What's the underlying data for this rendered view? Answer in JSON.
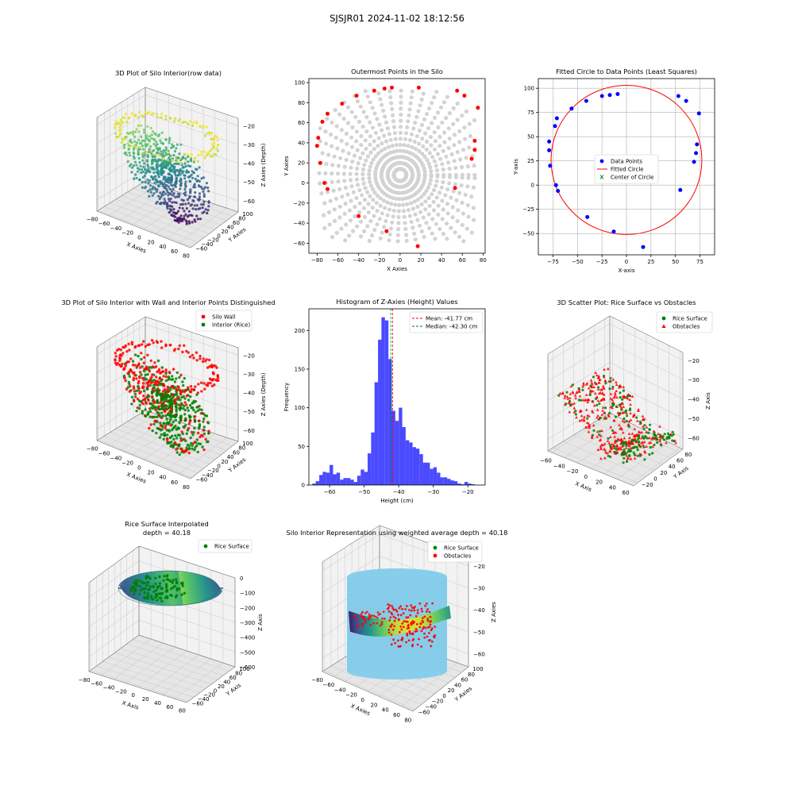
{
  "figure": {
    "suptitle": "SJSJR01 2024-11-02 18:12:56"
  },
  "colors": {
    "wall": "#ff0000",
    "rice": "#008000",
    "gray": "#d3d3d3",
    "blue": "#0000ff",
    "hist": "#4a4aff",
    "silo": "#87ceeb"
  },
  "chart_data": [
    {
      "type": "scatter3d",
      "title": "3D Plot of Silo Interior(row data)",
      "xlabel": "X Axies",
      "ylabel": "Y Axies",
      "zlabel": "Z Axies (Depth)",
      "xticks": [
        -80,
        -60,
        -40,
        -20,
        0,
        20,
        40,
        60,
        80
      ],
      "yticks": [
        -60,
        -40,
        -20,
        0,
        20,
        40,
        60,
        80,
        100
      ],
      "zticks": [
        -20,
        -30,
        -40,
        -50,
        -60
      ],
      "xlim": [
        -80,
        80
      ],
      "ylim": [
        -65,
        100
      ],
      "zlim": [
        -66,
        -16
      ],
      "colormap": "viridis"
    },
    {
      "type": "scatter",
      "title": "Outermost Points in the Silo",
      "xlabel": "X Axies",
      "ylabel": "Y Axies",
      "xlim": [
        -88,
        82
      ],
      "ylim": [
        -70,
        104
      ],
      "xticks": [
        -80,
        -60,
        -40,
        -20,
        0,
        20,
        40,
        60,
        80
      ],
      "yticks": [
        -60,
        -40,
        -20,
        0,
        20,
        40,
        60,
        80,
        100
      ],
      "outer_x": [
        -80,
        -79,
        -77,
        -75,
        -73,
        -70,
        -70,
        -56,
        -42,
        -40,
        -25,
        -15,
        -13,
        -8,
        17,
        18,
        53,
        55,
        62,
        69,
        72,
        72,
        75
      ],
      "outer_y": [
        37,
        45,
        20,
        61,
        0,
        69,
        -6,
        79,
        87,
        -33,
        92,
        94,
        -48,
        95,
        -63,
        95,
        -5,
        92,
        87,
        24,
        33,
        42,
        75
      ]
    },
    {
      "type": "scatter",
      "title": "Fitted Circle to Data Points (Least Squares)",
      "xlabel": "X-axis",
      "ylabel": "Y-axis",
      "xlim": [
        -90,
        90
      ],
      "ylim": [
        -72,
        110
      ],
      "xticks": [
        -75,
        -50,
        -25,
        0,
        25,
        50,
        75
      ],
      "yticks": [
        -50,
        -25,
        0,
        25,
        50,
        75,
        100
      ],
      "legend": [
        "Data Points",
        "Fitted Circle",
        "Center of Circle"
      ],
      "points_x": [
        -79,
        -79,
        -78,
        -73,
        -72,
        -71,
        -70,
        -56,
        -41,
        -40,
        -25,
        -17,
        -13,
        -9,
        17,
        53,
        55,
        61,
        69,
        71,
        72,
        74
      ],
      "points_y": [
        45,
        36,
        20,
        61,
        0,
        69,
        -6,
        79,
        87,
        -33,
        92,
        93,
        -48,
        94,
        -64,
        92,
        -5,
        87,
        24,
        33,
        42,
        74
      ],
      "circle": {
        "cx": 0,
        "cy": 26,
        "r": 77
      }
    },
    {
      "type": "scatter3d",
      "title": "3D Plot of Silo Interior with Wall and Interior Points Distinguished",
      "xlabel": "X Axies",
      "ylabel": "Y Axies",
      "zlabel": "Z Axies (Depth)",
      "xticks": [
        -80,
        -60,
        -40,
        -20,
        0,
        20,
        40,
        60,
        80
      ],
      "yticks": [
        -60,
        -40,
        -20,
        0,
        20,
        40,
        60,
        80,
        100
      ],
      "zticks": [
        -20,
        -30,
        -40,
        -50,
        -60
      ],
      "xlim": [
        -80,
        80
      ],
      "ylim": [
        -65,
        100
      ],
      "zlim": [
        -66,
        -16
      ],
      "legend": [
        "Silo Wall",
        "Interior (Rice)"
      ]
    },
    {
      "type": "bar",
      "title": "Histogram of Z-Axies (Height) Values",
      "xlabel": "Height (cm)",
      "ylabel": "Frequency",
      "xlim": [
        -66,
        -15
      ],
      "ylim": [
        0,
        228
      ],
      "xticks": [
        -60,
        -50,
        -40,
        -30,
        -20
      ],
      "yticks": [
        0,
        50,
        100,
        150,
        200
      ],
      "bin_start": -65,
      "bin_width": 1,
      "values": [
        2,
        5,
        13,
        17,
        16,
        26,
        14,
        16,
        7,
        9,
        9,
        7,
        4,
        12,
        20,
        17,
        41,
        68,
        133,
        188,
        217,
        213,
        163,
        96,
        83,
        100,
        75,
        58,
        55,
        49,
        47,
        40,
        29,
        29,
        21,
        23,
        16,
        10,
        10,
        8,
        6,
        5,
        2,
        1,
        4,
        2,
        1,
        0,
        0,
        0
      ],
      "mean": -41.77,
      "median": -42.3,
      "legend": [
        "Mean: -41.77 cm",
        "Median: -42.30 cm"
      ]
    },
    {
      "type": "scatter3d",
      "title": "3D Scatter Plot: Rice Surface vs Obstacles",
      "xlabel": "X Axis",
      "ylabel": "Y Axis",
      "zlabel": "Z Axis",
      "xticks": [
        -60,
        -40,
        -20,
        0,
        20,
        40,
        60
      ],
      "yticks": [
        -20,
        0,
        20,
        40,
        60,
        80
      ],
      "zticks": [
        -20,
        -30,
        -40,
        -50,
        -60
      ],
      "xlim": [
        -65,
        65
      ],
      "ylim": [
        -30,
        90
      ],
      "zlim": [
        -66,
        -16
      ],
      "legend": [
        "Rice Surface",
        "Obstacles"
      ]
    },
    {
      "type": "surface3d",
      "title": "Rice Surface Interpolated",
      "subtitle": "depth = 40.18",
      "xlabel": "X Axis",
      "ylabel": "Y Axis",
      "zlabel": "Z Axis",
      "xticks": [
        -80,
        -60,
        -40,
        -20,
        0,
        20,
        40,
        60,
        80
      ],
      "yticks": [
        -60,
        -40,
        -20,
        0,
        20,
        40,
        60,
        80,
        100
      ],
      "zticks": [
        0,
        -100,
        -200,
        -300,
        -400,
        -500,
        -600
      ],
      "xlim": [
        -80,
        80
      ],
      "ylim": [
        -65,
        100
      ],
      "zlim": [
        -600,
        0
      ],
      "legend": [
        "Rice Surface"
      ]
    },
    {
      "type": "surface3d",
      "title": "Silo Interior Representation using weighted average depth = 40.18",
      "xlabel": "X Axies",
      "ylabel": "Y Axies",
      "zlabel": "Z Axies",
      "xticks": [
        -80,
        -60,
        -40,
        -20,
        0,
        20,
        40,
        60,
        80
      ],
      "yticks": [
        -60,
        -40,
        -20,
        0,
        20,
        40,
        60,
        80,
        100
      ],
      "zticks": [
        -20,
        -30,
        -40,
        -50,
        -60
      ],
      "xlim": [
        -80,
        80
      ],
      "ylim": [
        -65,
        100
      ],
      "zlim": [
        -66,
        -16
      ],
      "legend": [
        "Rice Surface",
        "Obstacles"
      ]
    }
  ]
}
